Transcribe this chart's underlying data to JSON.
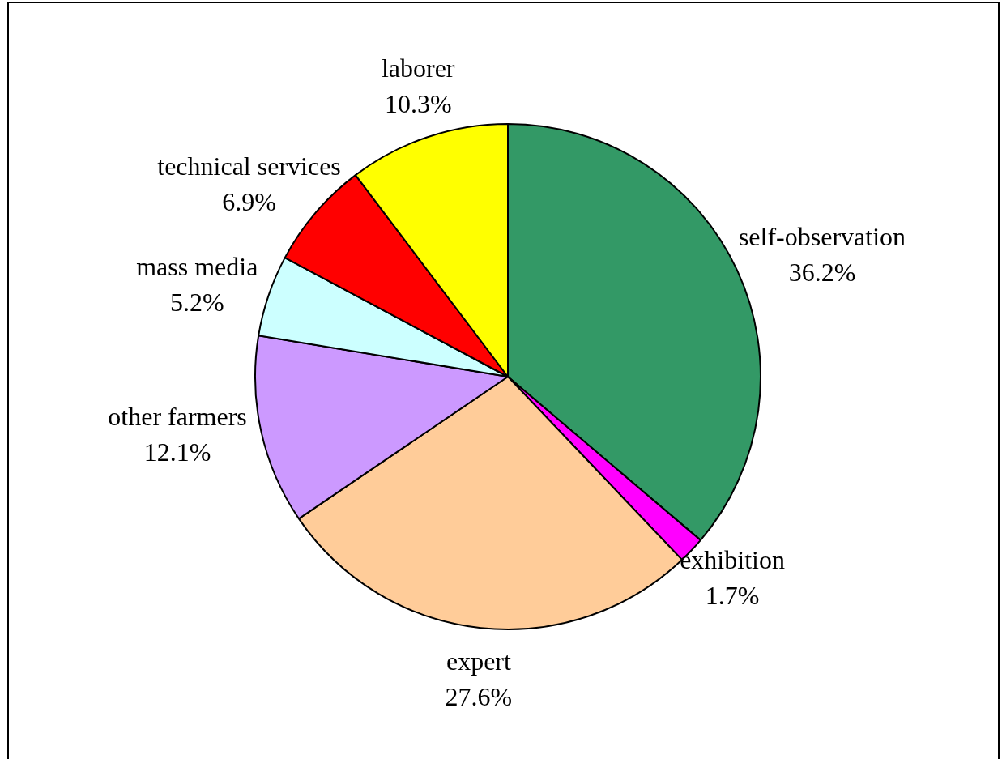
{
  "chart_data": {
    "type": "pie",
    "categories": [
      "self-observation",
      "exhibition",
      "expert",
      "other farmers",
      "mass media",
      "technical services",
      "laborer"
    ],
    "values": [
      36.2,
      1.7,
      27.6,
      12.1,
      5.2,
      6.9,
      10.3
    ],
    "value_labels": [
      "36.2%",
      "1.7%",
      "27.6%",
      "12.1%",
      "5.2%",
      "6.9%",
      "10.3%"
    ],
    "colors": [
      "#339966",
      "#ff00ff",
      "#ffcc99",
      "#cc99ff",
      "#ccffff",
      "#ff0000",
      "#ffff00"
    ],
    "legend": false
  }
}
